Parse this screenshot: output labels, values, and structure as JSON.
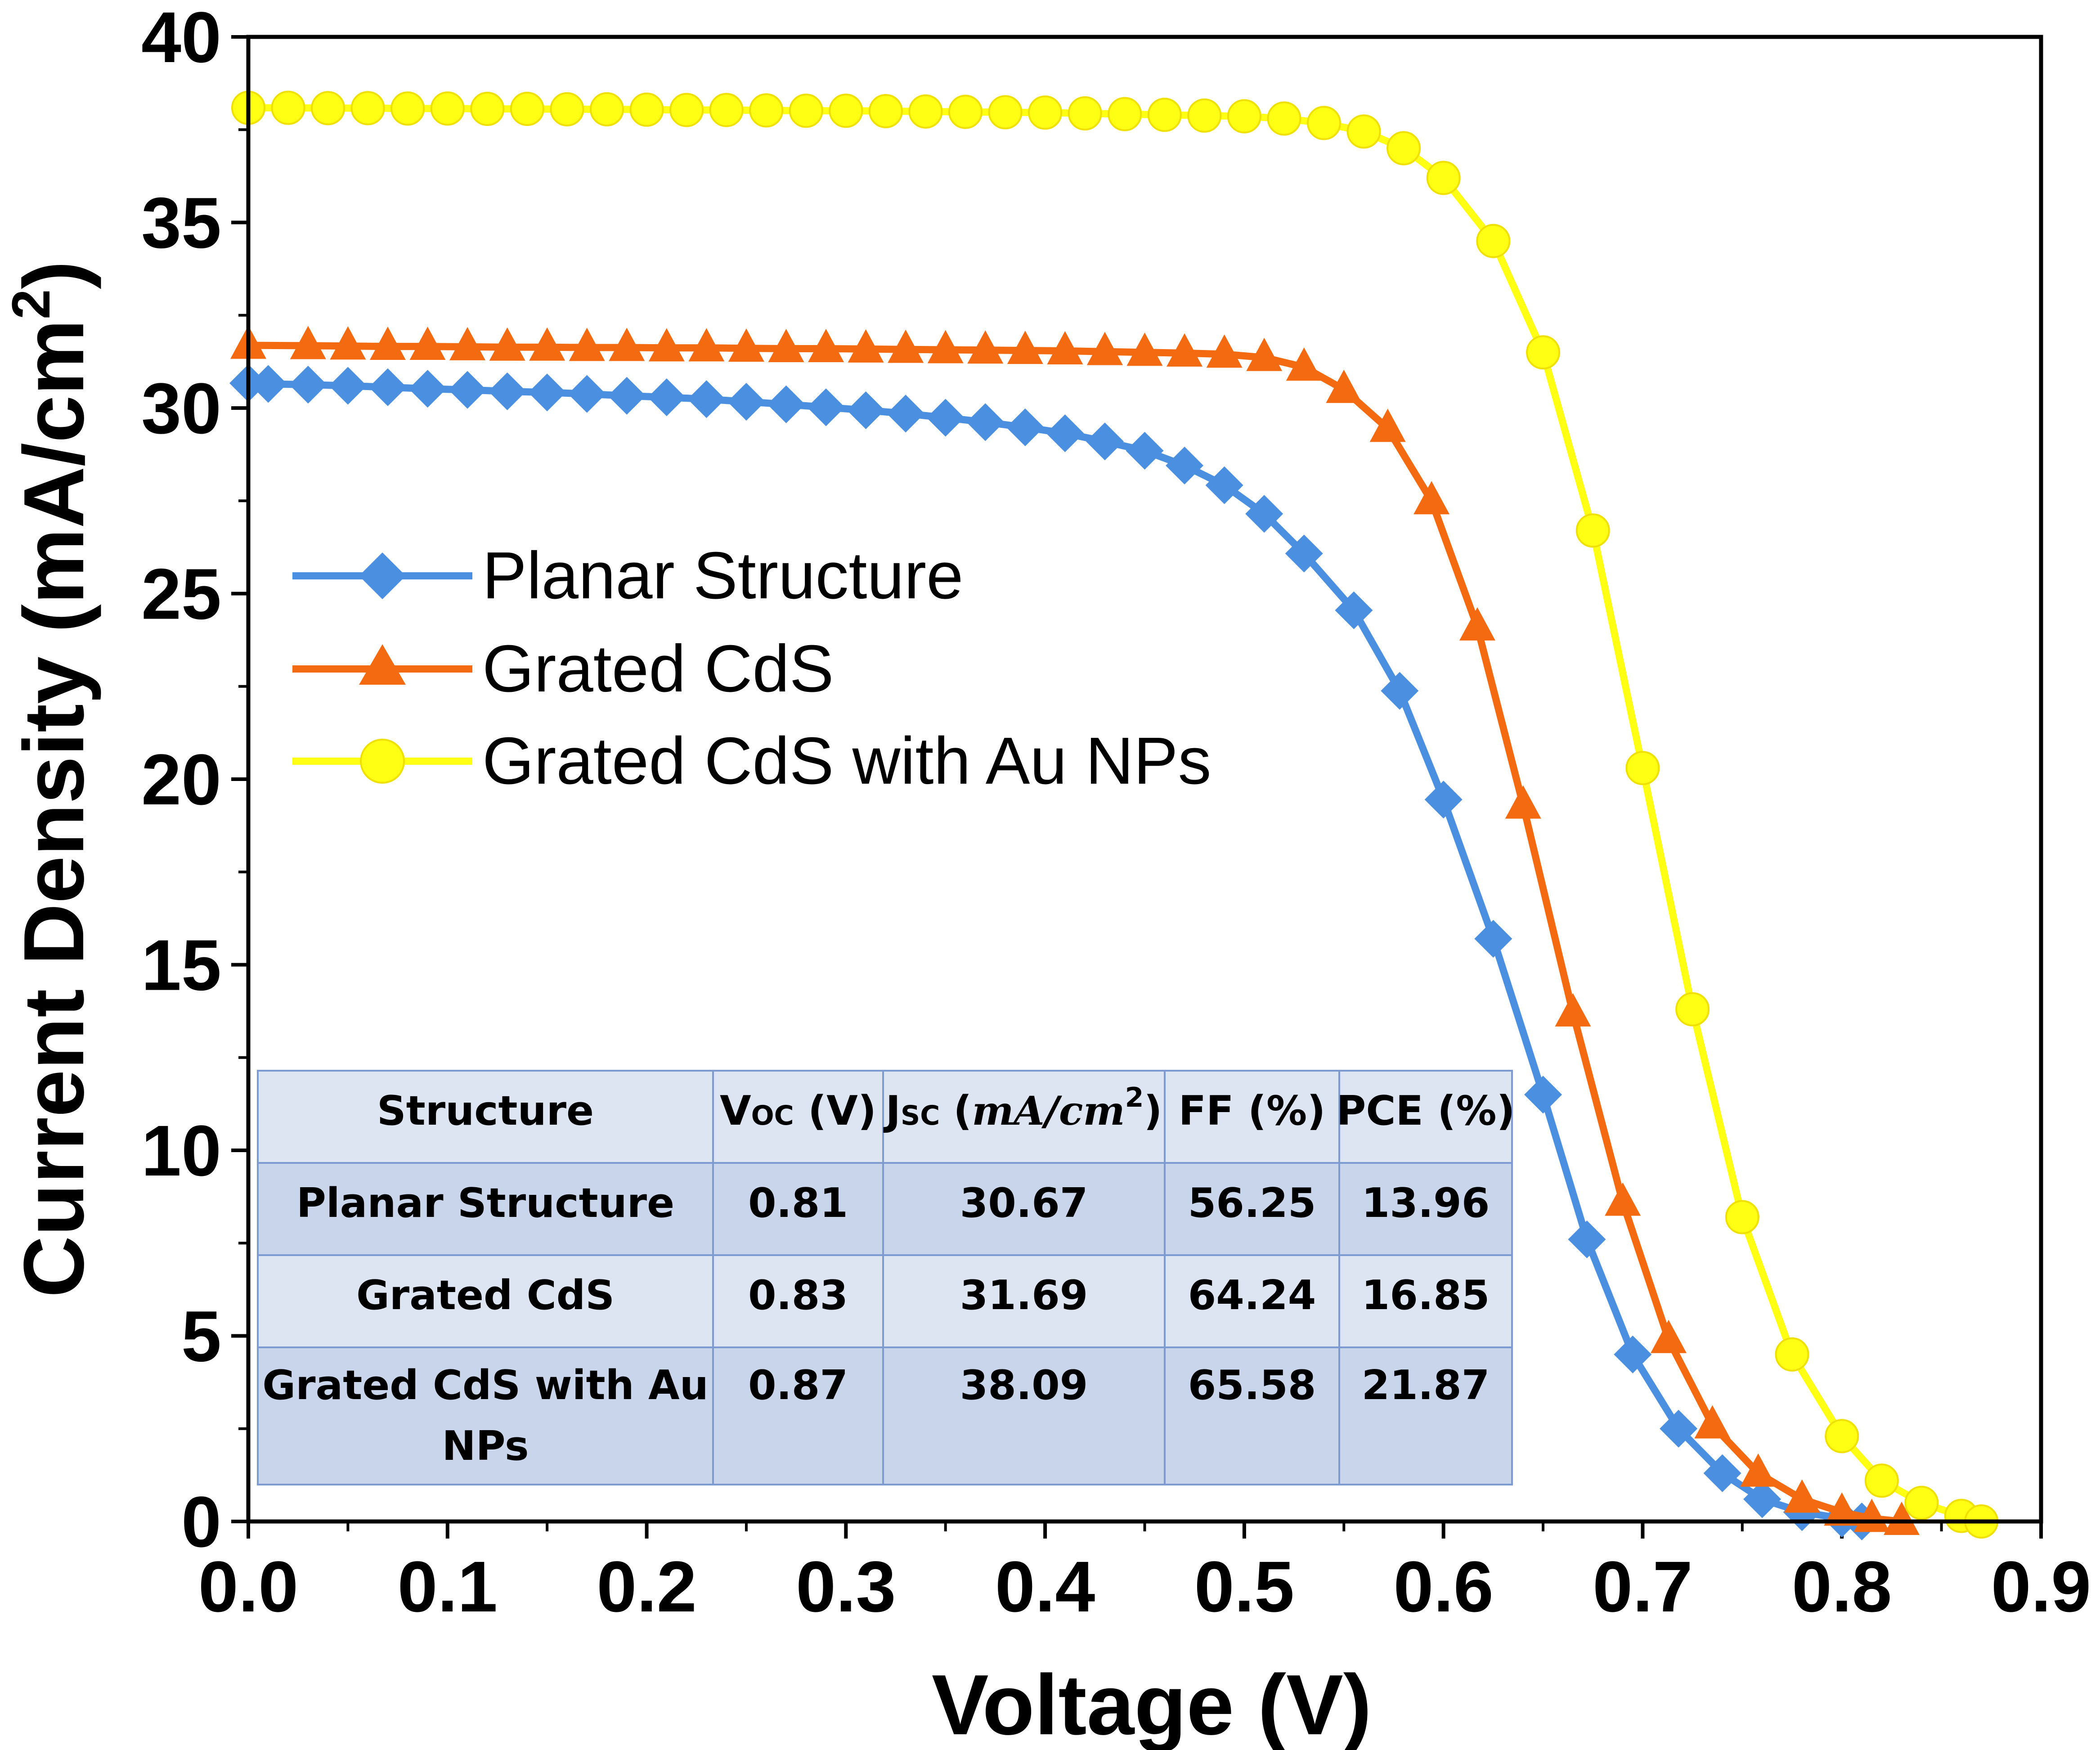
{
  "chart_data": {
    "type": "line",
    "title": "",
    "xlabel": "Voltage (V)",
    "ylabel": "Current Density (mA/cm",
    "ylabel_sup": "2",
    "ylabel_end": ")",
    "xlim": [
      0.0,
      0.9
    ],
    "ylim": [
      0,
      40
    ],
    "xticks": [
      "0.0",
      "0.1",
      "0.2",
      "0.3",
      "0.4",
      "0.5",
      "0.6",
      "0.7",
      "0.8",
      "0.9"
    ],
    "yticks": [
      "0",
      "5",
      "10",
      "15",
      "20",
      "25",
      "30",
      "35",
      "40"
    ],
    "series": [
      {
        "name": "Planar Structure",
        "color": "#4a8fe0",
        "marker": "diamond",
        "points": [
          [
            0.0,
            30.67
          ],
          [
            0.01,
            30.65
          ],
          [
            0.03,
            30.63
          ],
          [
            0.05,
            30.6
          ],
          [
            0.07,
            30.56
          ],
          [
            0.09,
            30.52
          ],
          [
            0.11,
            30.49
          ],
          [
            0.13,
            30.45
          ],
          [
            0.15,
            30.42
          ],
          [
            0.17,
            30.38
          ],
          [
            0.19,
            30.33
          ],
          [
            0.21,
            30.29
          ],
          [
            0.23,
            30.24
          ],
          [
            0.25,
            30.17
          ],
          [
            0.27,
            30.1
          ],
          [
            0.29,
            30.02
          ],
          [
            0.31,
            29.94
          ],
          [
            0.33,
            29.85
          ],
          [
            0.35,
            29.74
          ],
          [
            0.37,
            29.62
          ],
          [
            0.39,
            29.48
          ],
          [
            0.41,
            29.32
          ],
          [
            0.43,
            29.1
          ],
          [
            0.45,
            28.85
          ],
          [
            0.47,
            28.45
          ],
          [
            0.49,
            27.92
          ],
          [
            0.51,
            27.15
          ],
          [
            0.53,
            26.08
          ],
          [
            0.555,
            24.55
          ],
          [
            0.578,
            22.38
          ],
          [
            0.6,
            19.45
          ],
          [
            0.625,
            15.7
          ],
          [
            0.65,
            11.5
          ],
          [
            0.672,
            7.6
          ],
          [
            0.695,
            4.5
          ],
          [
            0.718,
            2.5
          ],
          [
            0.74,
            1.3
          ],
          [
            0.76,
            0.6
          ],
          [
            0.78,
            0.25
          ],
          [
            0.8,
            0.08
          ],
          [
            0.81,
            0.0
          ]
        ]
      },
      {
        "name": "Grated CdS",
        "color": "#f36a10",
        "marker": "triangle",
        "points": [
          [
            0.0,
            31.69
          ],
          [
            0.03,
            31.68
          ],
          [
            0.05,
            31.67
          ],
          [
            0.07,
            31.66
          ],
          [
            0.09,
            31.66
          ],
          [
            0.11,
            31.65
          ],
          [
            0.13,
            31.64
          ],
          [
            0.15,
            31.64
          ],
          [
            0.17,
            31.63
          ],
          [
            0.19,
            31.63
          ],
          [
            0.21,
            31.62
          ],
          [
            0.23,
            31.62
          ],
          [
            0.25,
            31.61
          ],
          [
            0.27,
            31.6
          ],
          [
            0.29,
            31.6
          ],
          [
            0.31,
            31.59
          ],
          [
            0.33,
            31.58
          ],
          [
            0.35,
            31.57
          ],
          [
            0.37,
            31.56
          ],
          [
            0.39,
            31.55
          ],
          [
            0.41,
            31.54
          ],
          [
            0.43,
            31.52
          ],
          [
            0.45,
            31.5
          ],
          [
            0.47,
            31.48
          ],
          [
            0.49,
            31.45
          ],
          [
            0.51,
            31.36
          ],
          [
            0.53,
            31.1
          ],
          [
            0.55,
            30.5
          ],
          [
            0.572,
            29.45
          ],
          [
            0.594,
            27.5
          ],
          [
            0.617,
            24.1
          ],
          [
            0.64,
            19.3
          ],
          [
            0.665,
            13.7
          ],
          [
            0.69,
            8.6
          ],
          [
            0.713,
            4.9
          ],
          [
            0.735,
            2.6
          ],
          [
            0.758,
            1.3
          ],
          [
            0.78,
            0.6
          ],
          [
            0.8,
            0.25
          ],
          [
            0.815,
            0.08
          ],
          [
            0.83,
            0.0
          ]
        ]
      },
      {
        "name": "Grated CdS with Au NPs",
        "color": "#ffff14",
        "marker": "circle",
        "points": [
          [
            0.0,
            38.09
          ],
          [
            0.02,
            38.09
          ],
          [
            0.04,
            38.08
          ],
          [
            0.06,
            38.08
          ],
          [
            0.08,
            38.07
          ],
          [
            0.1,
            38.07
          ],
          [
            0.12,
            38.06
          ],
          [
            0.14,
            38.06
          ],
          [
            0.16,
            38.05
          ],
          [
            0.18,
            38.05
          ],
          [
            0.2,
            38.04
          ],
          [
            0.22,
            38.03
          ],
          [
            0.24,
            38.03
          ],
          [
            0.26,
            38.02
          ],
          [
            0.28,
            38.01
          ],
          [
            0.3,
            38.01
          ],
          [
            0.32,
            38.0
          ],
          [
            0.34,
            37.99
          ],
          [
            0.36,
            37.98
          ],
          [
            0.38,
            37.97
          ],
          [
            0.4,
            37.96
          ],
          [
            0.42,
            37.94
          ],
          [
            0.44,
            37.92
          ],
          [
            0.46,
            37.9
          ],
          [
            0.48,
            37.88
          ],
          [
            0.5,
            37.86
          ],
          [
            0.52,
            37.8
          ],
          [
            0.54,
            37.68
          ],
          [
            0.56,
            37.45
          ],
          [
            0.58,
            37.0
          ],
          [
            0.6,
            36.2
          ],
          [
            0.625,
            34.5
          ],
          [
            0.65,
            31.5
          ],
          [
            0.675,
            26.7
          ],
          [
            0.7,
            20.3
          ],
          [
            0.725,
            13.8
          ],
          [
            0.75,
            8.2
          ],
          [
            0.775,
            4.5
          ],
          [
            0.8,
            2.3
          ],
          [
            0.82,
            1.1
          ],
          [
            0.84,
            0.5
          ],
          [
            0.86,
            0.15
          ],
          [
            0.87,
            0.0
          ]
        ]
      }
    ],
    "legend": {
      "placement": "center-left",
      "entries": [
        "Planar Structure",
        "Grated CdS",
        "Grated CdS with Au NPs"
      ]
    },
    "table": {
      "placement": "bottom-left",
      "headers": {
        "structure": "Structure",
        "voc_main": "V",
        "voc_sub": "OC",
        "voc_unit": " (V)",
        "jsc_main": "J",
        "jsc_sub": "SC",
        "jsc_unit_open": "(",
        "jsc_unit_var": "mA",
        "jsc_unit_slash": "/",
        "jsc_unit_var2": "cm",
        "jsc_unit_sup": "2",
        "jsc_unit_close": ")",
        "ff": "FF (%)",
        "pce": "PCE (%)"
      },
      "rows": [
        {
          "structure": "Planar Structure",
          "structure_line2": "",
          "voc": "0.81",
          "jsc": "30.67",
          "ff": "56.25",
          "pce": "13.96"
        },
        {
          "structure": "Grated CdS",
          "structure_line2": "",
          "voc": "0.83",
          "jsc": "31.69",
          "ff": "64.24",
          "pce": "16.85"
        },
        {
          "structure": "Grated CdS with Au",
          "structure_line2": "NPs",
          "voc": "0.87",
          "jsc": "38.09",
          "ff": "65.58",
          "pce": "21.87"
        }
      ]
    }
  }
}
